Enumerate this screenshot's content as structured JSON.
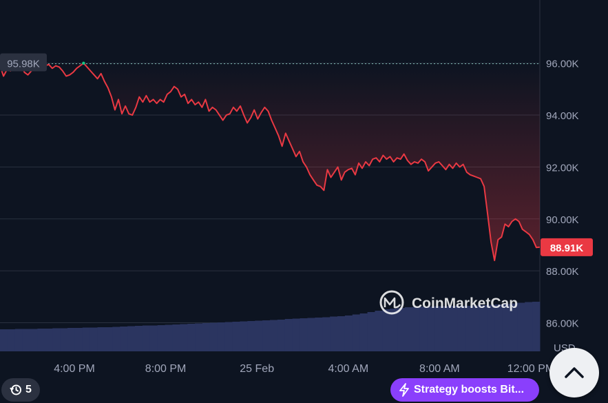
{
  "chart_data": {
    "type": "line",
    "yaxis_unit": "USD",
    "ylim": [
      84500,
      98500
    ],
    "yticks": [
      {
        "value": 86000,
        "label": "86.00K"
      },
      {
        "value": 88000,
        "label": "88.00K"
      },
      {
        "value": 90000,
        "label": "90.00K"
      },
      {
        "value": 92000,
        "label": "92.00K"
      },
      {
        "value": 94000,
        "label": "94.00K"
      },
      {
        "value": 96000,
        "label": "96.00K"
      }
    ],
    "xticks": [
      "4:00 PM",
      "8:00 PM",
      "25 Feb",
      "4:00 AM",
      "8:00 AM",
      "12:00 PM"
    ],
    "open_label": "95.98K",
    "open_value": 95980,
    "current_label": "88.91K",
    "current_value": 88910,
    "series": [
      {
        "values": [
          95900,
          95500,
          95750,
          95700,
          95850,
          95950,
          95980,
          95650,
          95550,
          95700,
          95750,
          95800,
          95850,
          95900,
          95950,
          95800,
          95900,
          95850,
          95700,
          95500,
          95550,
          95650,
          95800,
          95900,
          96000,
          95850,
          95700,
          95550,
          95400,
          95600,
          95300,
          95050,
          94700,
          94200,
          94600,
          94050,
          94350,
          94050,
          94000,
          94300,
          94700,
          94500,
          94750,
          94500,
          94600,
          94450,
          94600,
          94500,
          94800,
          94900,
          95100,
          95000,
          94700,
          94800,
          94450,
          94600,
          94400,
          94500,
          94300,
          94600,
          94150,
          94300,
          94200,
          94000,
          93800,
          94000,
          94050,
          94300,
          94150,
          94350,
          94000,
          93700,
          93900,
          94200,
          93850,
          94100,
          94300,
          94150,
          93800,
          93500,
          93200,
          92800,
          93300,
          93000,
          92700,
          92400,
          92600,
          92200,
          92000,
          91700,
          91500,
          91300,
          91250,
          91100,
          91900,
          91600,
          91800,
          92000,
          91500,
          91800,
          91900,
          91950,
          91700,
          92150,
          91950,
          92200,
          92050,
          92300,
          92350,
          92200,
          92450,
          92300,
          92400,
          92200,
          92350,
          92300,
          92500,
          92250,
          92100,
          92200,
          92150,
          92300,
          92200,
          91850,
          92000,
          92150,
          92200,
          92050,
          91900,
          92100,
          91950,
          92150,
          92000,
          92100,
          91800,
          91700,
          91650,
          91600,
          91550,
          91250,
          90200,
          89100,
          88400,
          89200,
          89300,
          89800,
          89700,
          89900,
          90000,
          89900,
          89600,
          89500,
          89400,
          89200,
          88900,
          88910
        ]
      }
    ],
    "volume": [
      0.2,
      0.2,
      0.21,
      0.21,
      0.21,
      0.22,
      0.22,
      0.23,
      0.23,
      0.24,
      0.24,
      0.25,
      0.25,
      0.26,
      0.26,
      0.27,
      0.28,
      0.29,
      0.3,
      0.31,
      0.31,
      0.32,
      0.33,
      0.34,
      0.35,
      0.36,
      0.37,
      0.38,
      0.39,
      0.4,
      0.41,
      0.42,
      0.43,
      0.44,
      0.45,
      0.46,
      0.47,
      0.48,
      0.5,
      0.51,
      0.52,
      0.53,
      0.54,
      0.55,
      0.57,
      0.58,
      0.6,
      0.63,
      0.66,
      0.7,
      0.74,
      0.78,
      0.8,
      0.82,
      0.84,
      0.85,
      0.86,
      0.86,
      0.87,
      0.87,
      0.88,
      0.88,
      0.88,
      0.89,
      0.9,
      0.91,
      0.92,
      0.93,
      0.95,
      0.97,
      0.99,
      1.0
    ],
    "colors": {
      "background": "#0d1421",
      "line": "#ea3943",
      "grid": "#2a3140",
      "volume": "#2b3560",
      "current_tag": "#ea3943",
      "open_tag": "#2b3140",
      "peak_marker": "#16c784",
      "axis_text": "#a1a7bb"
    },
    "watermark": "CoinMarketCap"
  },
  "badges": {
    "history_count": "5",
    "news_text": "Strategy boosts Bit..."
  },
  "icons": {
    "history": "history-icon",
    "lightning": "lightning-icon",
    "scroll_top": "chevron-up-icon",
    "logo": "coinmarketcap-logo-icon"
  }
}
